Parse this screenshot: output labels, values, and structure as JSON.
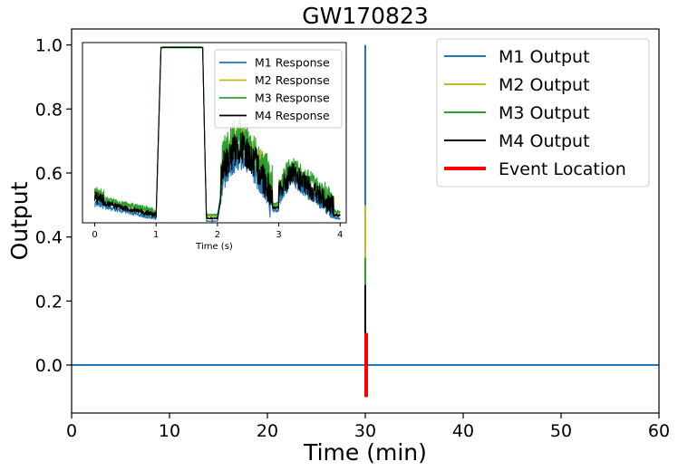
{
  "chart_data": [
    {
      "type": "line",
      "title": "GW170823",
      "xlabel": "Time (min)",
      "ylabel": "Output",
      "xlim": [
        0,
        60
      ],
      "ylim": [
        -0.15,
        1.05
      ],
      "xticks": [
        0,
        10,
        20,
        30,
        40,
        50,
        60
      ],
      "yticks": [
        0.0,
        0.2,
        0.4,
        0.6,
        0.8,
        1.0
      ],
      "grid": false,
      "legend_position": "top-right",
      "colors": {
        "M1": "#1f77b4",
        "M2": "#bcbd22",
        "M3": "#2ca02c",
        "M4": "#000000",
        "event": "#ff0000"
      },
      "series": [
        {
          "name": "M1 Output",
          "spike_x": 30,
          "baseline": 0.0,
          "peak": 1.0
        },
        {
          "name": "M2 Output",
          "spike_x": 30,
          "baseline": 0.0,
          "peak": 0.5
        },
        {
          "name": "M3 Output",
          "spike_x": 30,
          "baseline": 0.0,
          "peak": 0.335
        },
        {
          "name": "M4 Output",
          "spike_x": 30,
          "baseline": 0.0,
          "peak": 0.25
        },
        {
          "name": "Event Location",
          "x": 30,
          "y_range": [
            -0.1,
            0.1
          ]
        }
      ]
    },
    {
      "type": "line",
      "title": "",
      "xlabel": "Time (s)",
      "ylabel": "",
      "xlim": [
        -0.2,
        4.1
      ],
      "ylim": [
        0.46,
        0.99
      ],
      "xticks": [
        0,
        1,
        2,
        3,
        4
      ],
      "grid": false,
      "legend_position": "top-right",
      "series": [
        {
          "name": "M1 Response",
          "noise": 0.6
        },
        {
          "name": "M2 Response",
          "noise": 0.9
        },
        {
          "name": "M3 Response",
          "noise": 1.0
        },
        {
          "name": "M4 Response",
          "noise": 0.85
        }
      ]
    }
  ]
}
